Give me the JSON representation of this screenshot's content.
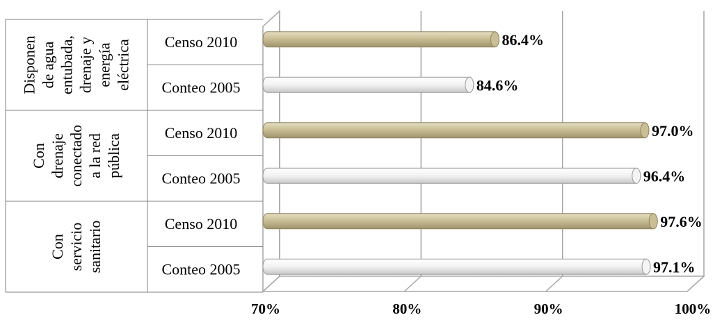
{
  "colors": {
    "censo": "#c9be95",
    "censo_dark": "#8f8460",
    "conteo": "#f4f4f4",
    "conteo_dark": "#9a9a9a",
    "grid": "#a6a6a6"
  },
  "chart_data": {
    "type": "bar",
    "orientation": "horizontal",
    "xlim": [
      70,
      100
    ],
    "x_ticks": [
      "70%",
      "80%",
      "90%",
      "100%"
    ],
    "grid": true,
    "groups": [
      {
        "label_lines": [
          "Disponen",
          "de agua",
          "entubada,",
          "drenaje y",
          "energía",
          "eléctrica"
        ],
        "bars": [
          {
            "category": "Censo 2010",
            "series": "censo",
            "value": 86.4,
            "label": "86.4%"
          },
          {
            "category": "Conteo 2005",
            "series": "conteo",
            "value": 84.6,
            "label": "84.6%"
          }
        ]
      },
      {
        "label_lines": [
          "Con",
          "drenaje",
          "conectado",
          "a la red",
          "pública"
        ],
        "bars": [
          {
            "category": "Censo 2010",
            "series": "censo",
            "value": 97.0,
            "label": "97.0%"
          },
          {
            "category": "Conteo 2005",
            "series": "conteo",
            "value": 96.4,
            "label": "96.4%"
          }
        ]
      },
      {
        "label_lines": [
          "Con",
          "servicio",
          "sanitario"
        ],
        "bars": [
          {
            "category": "Censo 2010",
            "series": "censo",
            "value": 97.6,
            "label": "97.6%"
          },
          {
            "category": "Conteo 2005",
            "series": "conteo",
            "value": 97.1,
            "label": "97.1%"
          }
        ]
      }
    ]
  }
}
